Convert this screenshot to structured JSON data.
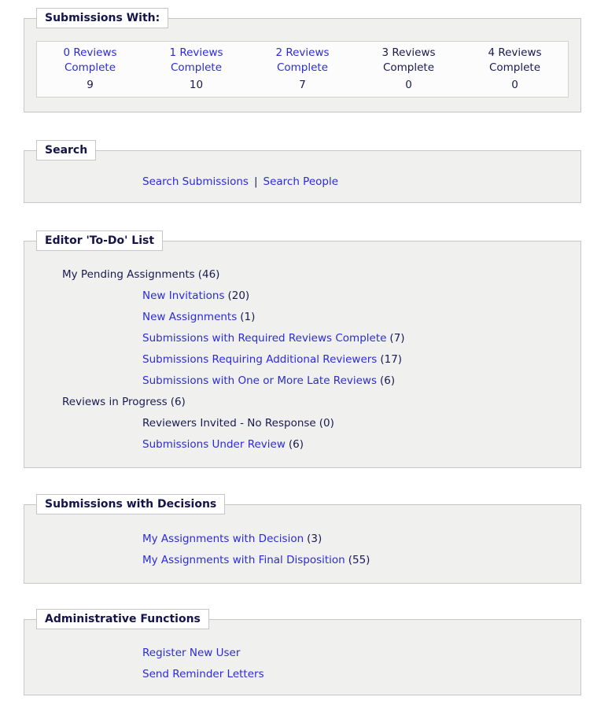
{
  "colors": {
    "link_blue": "#2b2bd8",
    "text_navy": "#1a1a52",
    "panel_bg": "#f0f0ef",
    "panel_border": "#c6c6c6"
  },
  "submissions_with": {
    "legend": "Submissions With:",
    "columns": [
      {
        "line1": "0 Reviews",
        "line2": "Complete",
        "count": "9"
      },
      {
        "line1": "1 Reviews",
        "line2": "Complete",
        "count": "10"
      },
      {
        "line1": "2 Reviews",
        "line2": "Complete",
        "count": "7"
      },
      {
        "line1": "3 Reviews",
        "line2": "Complete",
        "count": "0"
      },
      {
        "line1": "4 Reviews",
        "line2": "Complete",
        "count": "0"
      }
    ]
  },
  "search": {
    "legend": "Search",
    "link_submissions": "Search Submissions",
    "separator": "|",
    "link_people": "Search People"
  },
  "todo": {
    "legend": "Editor 'To-Do' List",
    "rows": [
      {
        "label": "My Pending Assignments",
        "count": "(46)"
      },
      {
        "label": "New Invitations",
        "count": "(20)"
      },
      {
        "label": "New Assignments",
        "count": "(1)"
      },
      {
        "label": "Submissions with Required Reviews Complete",
        "count": "(7)"
      },
      {
        "label": "Submissions Requiring Additional Reviewers",
        "count": "(17)"
      },
      {
        "label": "Submissions with One or More Late Reviews",
        "count": "(6)"
      },
      {
        "label": "Reviews in Progress",
        "count": "(6)"
      },
      {
        "label": "Reviewers Invited - No Response",
        "count": "(0)"
      },
      {
        "label": "Submissions Under Review",
        "count": "(6)"
      }
    ]
  },
  "decisions": {
    "legend": "Submissions with Decisions",
    "rows": [
      {
        "label": "My Assignments with Decision",
        "count": "(3)"
      },
      {
        "label": "My Assignments with Final Disposition",
        "count": "(55)"
      }
    ]
  },
  "admin": {
    "legend": "Administrative Functions",
    "rows": [
      {
        "label": "Register New User"
      },
      {
        "label": "Send Reminder Letters"
      }
    ]
  }
}
